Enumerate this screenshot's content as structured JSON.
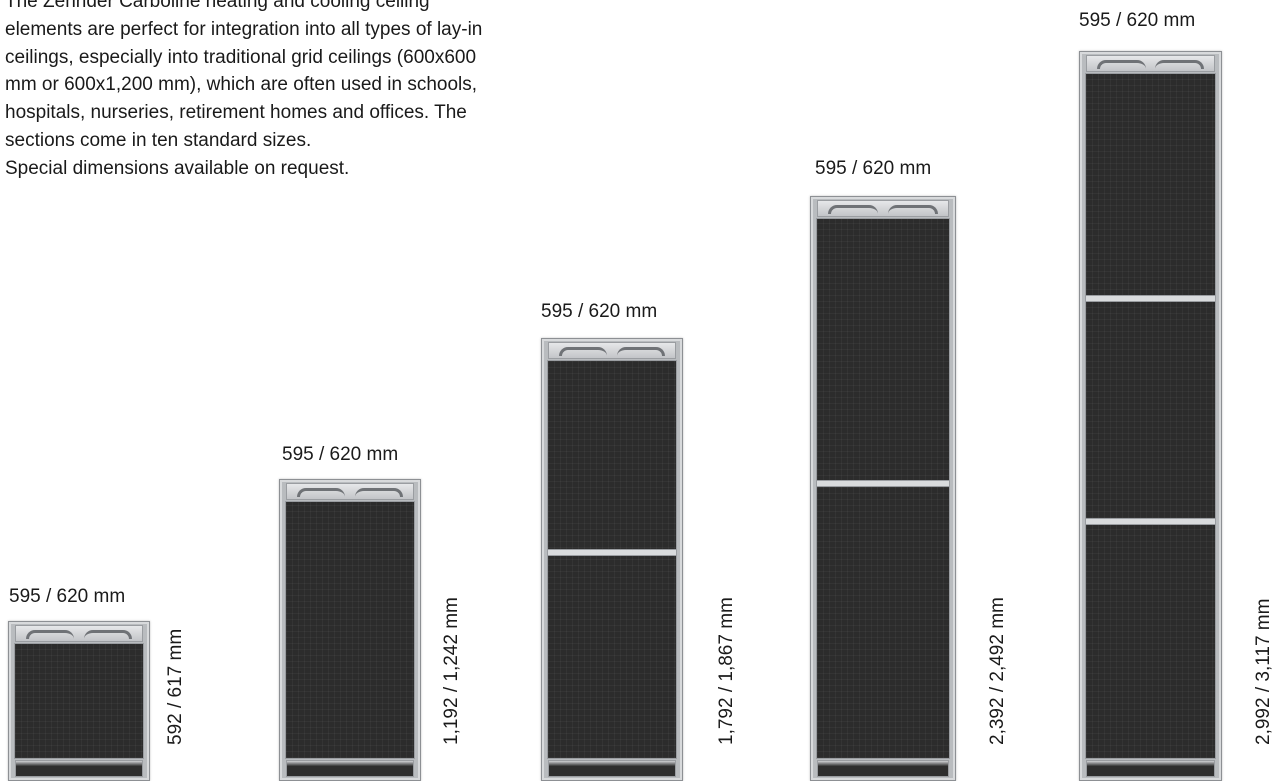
{
  "intro": {
    "paragraph": "The Zehnder Carboline heating and cooling ceiling elements are perfect for integration into all types of lay-in ceilings, especially into traditional grid ceilings (600x600 mm or 600x1,200 mm), which are often used in schools, hospitals, nurseries, retirement homes and offices. The sections come in ten standard sizes.",
    "note": "Special dimensions available on request."
  },
  "panels": [
    {
      "width_label": "595 / 620 mm",
      "height_label": "592 / 617 mm",
      "sections": 1
    },
    {
      "width_label": "595 / 620 mm",
      "height_label": "1,192 / 1,242 mm",
      "sections": 1
    },
    {
      "width_label": "595 / 620 mm",
      "height_label": "1,792 / 1,867 mm",
      "sections": 2
    },
    {
      "width_label": "595 / 620 mm",
      "height_label": "2,392 / 2,492 mm",
      "sections": 2
    },
    {
      "width_label": "595 / 620 mm",
      "height_label": "2,992 / 3,117 mm",
      "sections": 3
    }
  ],
  "colors": {
    "frame": "#b9bcbf",
    "surface": "#2c2c2c",
    "text": "#1a1a1a"
  }
}
